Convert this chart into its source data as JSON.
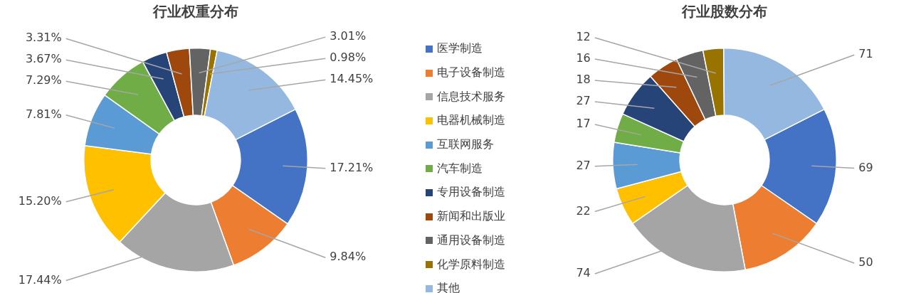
{
  "chart_data": [
    {
      "type": "donut",
      "title": "行业权重分布",
      "categories": [
        "医学制造",
        "电子设备制造",
        "信息技术服务",
        "电器机械制造",
        "互联网服务",
        "汽车制造",
        "专用设备制造",
        "新闻和出版业",
        "通用设备制造",
        "化学原料制造",
        "其他"
      ],
      "values": [
        17.21,
        9.84,
        17.44,
        15.2,
        7.81,
        7.29,
        3.67,
        3.31,
        3.01,
        0.98,
        14.45
      ],
      "value_labels": [
        "17.21%",
        "9.84%",
        "17.44%",
        "15.20%",
        "7.81%",
        "7.29%",
        "3.67%",
        "3.31%",
        "3.01%",
        "0.98%",
        "14.45%"
      ],
      "colors": [
        "#4472c4",
        "#ed7d31",
        "#a5a5a5",
        "#ffc000",
        "#5b9bd5",
        "#70ad47",
        "#264478",
        "#9e480e",
        "#636363",
        "#997300",
        "#95b8e0"
      ],
      "legend": "right"
    },
    {
      "type": "donut",
      "title": "行业股数分布",
      "categories": [
        null,
        null,
        null,
        null,
        null,
        null,
        null,
        null,
        null,
        null,
        null
      ],
      "values": [
        69,
        50,
        74,
        22,
        27,
        17,
        27,
        18,
        16,
        12,
        71
      ],
      "data_labels": true,
      "colors": [
        "#4472c4",
        "#ed7d31",
        "#a5a5a5",
        "#ffc000",
        "#5b9bd5",
        "#70ad47",
        "#264478",
        "#9e480e",
        "#636363",
        "#997300",
        "#95b8e0"
      ]
    }
  ]
}
